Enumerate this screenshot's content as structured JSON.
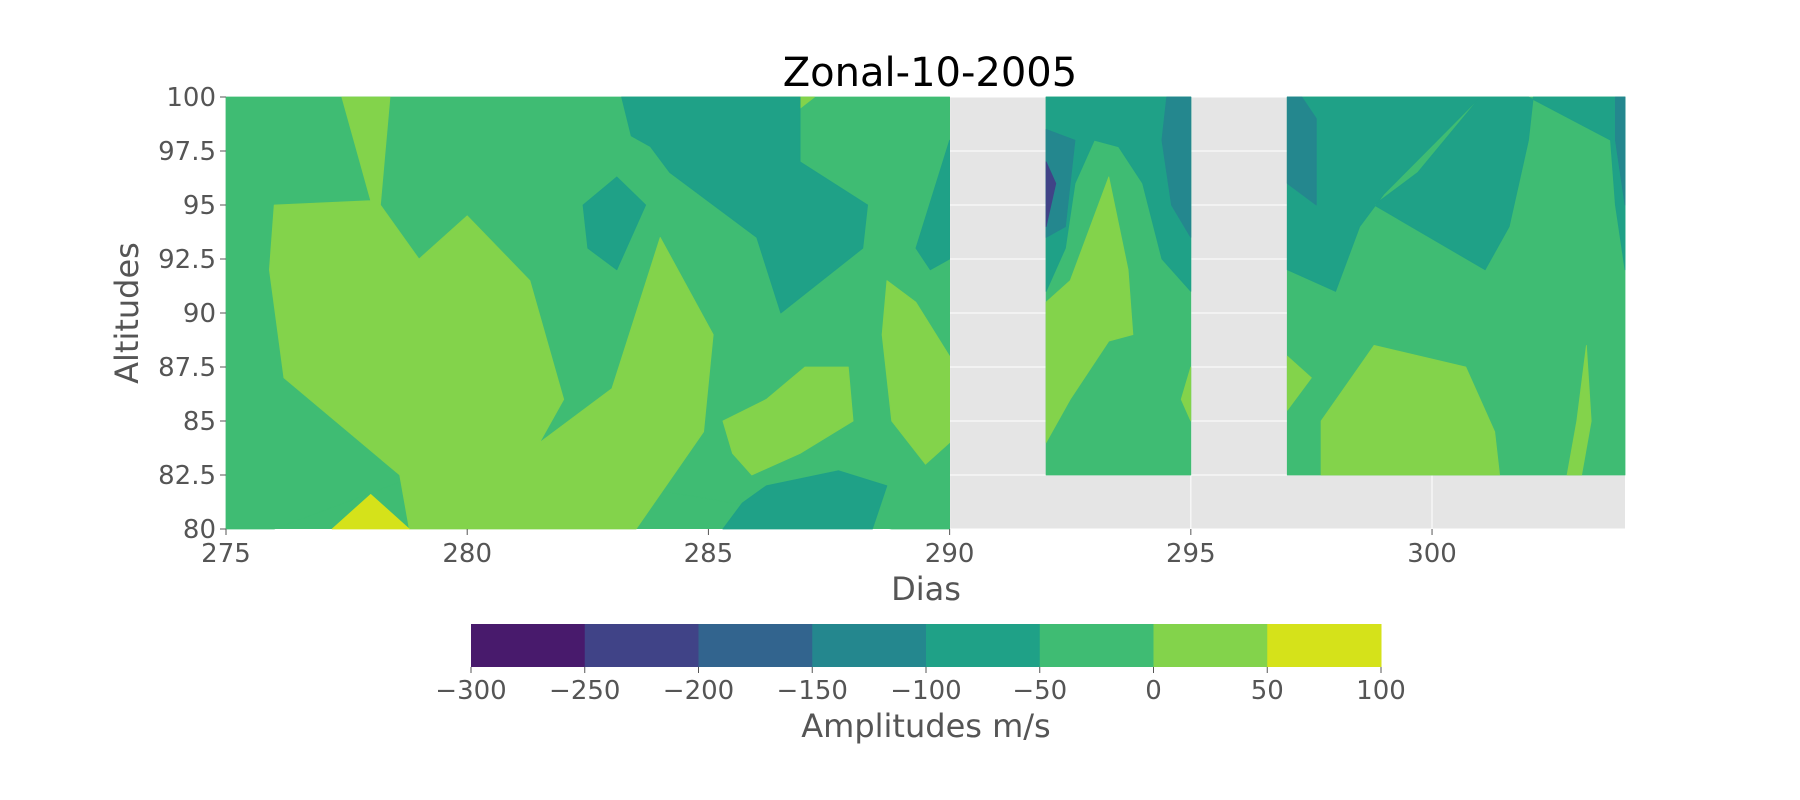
{
  "chart_data": {
    "type": "contour",
    "title": "Zonal-10-2005",
    "xlabel": "Dias",
    "ylabel": "Altitudes",
    "xlim": [
      275,
      304
    ],
    "ylim": [
      80,
      100
    ],
    "xticks": [
      "275",
      "280",
      "285",
      "290",
      "295",
      "300"
    ],
    "yticks": [
      "80",
      "82.5",
      "85",
      "87.5",
      "90",
      "92.5",
      "95",
      "97.5",
      "100"
    ],
    "grid": true,
    "background_color": "#e5e5e5",
    "colorbar": {
      "label": "Amplitudes m/s",
      "levels": [
        -300,
        -250,
        -200,
        -150,
        -100,
        -50,
        0,
        50,
        100
      ],
      "tick_labels": [
        "−300",
        "−250",
        "−200",
        "−150",
        "−100",
        "−50",
        "0",
        "50",
        "100"
      ],
      "colors": [
        "#481a6c",
        "#404387",
        "#32648e",
        "#24878e",
        "#1fa187",
        "#3fbc73",
        "#83d34b",
        "#d5e21a"
      ]
    },
    "data_regions": [
      {
        "x_start": 275,
        "x_end": 290,
        "y_start": 80,
        "y_end": 100
      },
      {
        "x_start": 292,
        "x_end": 295,
        "y_start": 82.5,
        "y_end": 100
      },
      {
        "x_start": 297,
        "x_end": 304,
        "y_start": 82.5,
        "y_end": 100
      }
    ],
    "contour_bands": [
      {
        "level_range": [
          -50,
          0
        ],
        "points": [
          [
            275,
            100
          ],
          [
            290,
            100
          ],
          [
            290,
            80
          ],
          [
            288.8,
            80
          ],
          [
            282,
            82.5
          ],
          [
            279,
            82.5
          ],
          [
            276,
            80
          ],
          [
            275,
            80
          ]
        ]
      },
      {
        "level_range": [
          0,
          50
        ],
        "points": [
          [
            276,
            95
          ],
          [
            278,
            95.2
          ],
          [
            277.4,
            100
          ],
          [
            278.4,
            100
          ],
          [
            278.2,
            95
          ],
          [
            279,
            92.5
          ],
          [
            280,
            94.5
          ],
          [
            281.3,
            91.5
          ],
          [
            282,
            86
          ],
          [
            281.5,
            84
          ],
          [
            283,
            86.5
          ],
          [
            284,
            93.5
          ],
          [
            285.1,
            89
          ],
          [
            284.9,
            84.5
          ],
          [
            283.5,
            80
          ],
          [
            278.8,
            80
          ],
          [
            278.6,
            82.5
          ],
          [
            277.8,
            84
          ],
          [
            276.2,
            87
          ],
          [
            275.9,
            92
          ]
        ]
      },
      {
        "level_range": [
          0,
          50
        ],
        "points": [
          [
            285.3,
            85
          ],
          [
            286.2,
            86
          ],
          [
            287,
            87.5
          ],
          [
            287.9,
            87.5
          ],
          [
            288,
            85
          ],
          [
            286.9,
            83.5
          ],
          [
            285.9,
            82.5
          ],
          [
            285.5,
            83.5
          ]
        ]
      },
      {
        "level_range": [
          0,
          50
        ],
        "points": [
          [
            288.7,
            91.5
          ],
          [
            289.3,
            90.5
          ],
          [
            290,
            88
          ],
          [
            290,
            84
          ],
          [
            289.5,
            83
          ],
          [
            288.8,
            85
          ],
          [
            288.6,
            89
          ]
        ]
      },
      {
        "level_range": [
          0,
          50
        ],
        "points": [
          [
            285.9,
            100
          ],
          [
            287.2,
            100
          ],
          [
            286.8,
            99.3
          ],
          [
            286.1,
            99.2
          ]
        ]
      },
      {
        "level_range": [
          50,
          100
        ],
        "points": [
          [
            277.2,
            80
          ],
          [
            278,
            81.6
          ],
          [
            278.8,
            80
          ]
        ]
      },
      {
        "level_range": [
          -100,
          -50
        ],
        "points": [
          [
            283.2,
            100
          ],
          [
            286.9,
            100
          ],
          [
            286.9,
            97
          ],
          [
            288.3,
            95
          ],
          [
            288.2,
            93
          ],
          [
            286.5,
            90
          ],
          [
            286,
            93.5
          ],
          [
            284.2,
            96.5
          ],
          [
            283.8,
            97.7
          ],
          [
            283.4,
            98.2
          ]
        ]
      },
      {
        "level_range": [
          -100,
          -50
        ],
        "points": [
          [
            282.4,
            95
          ],
          [
            283.1,
            96.3
          ],
          [
            283.7,
            95
          ],
          [
            283.1,
            92
          ],
          [
            282.5,
            93
          ]
        ]
      },
      {
        "level_range": [
          -100,
          -50
        ],
        "points": [
          [
            285.3,
            80
          ],
          [
            288.4,
            80
          ],
          [
            288.7,
            82
          ],
          [
            287.7,
            82.7
          ],
          [
            286.2,
            82
          ],
          [
            285.7,
            81.2
          ]
        ]
      },
      {
        "level_range": [
          -100,
          -50
        ],
        "points": [
          [
            289.3,
            93
          ],
          [
            290,
            98
          ],
          [
            290,
            92.5
          ],
          [
            289.6,
            92
          ]
        ]
      },
      {
        "level_range": [
          -50,
          0
        ],
        "points": [
          [
            292,
            100
          ],
          [
            295,
            100
          ],
          [
            295,
            82.5
          ],
          [
            292,
            82.5
          ]
        ]
      },
      {
        "level_range": [
          0,
          50
        ],
        "points": [
          [
            292,
            90.5
          ],
          [
            292.5,
            91.5
          ],
          [
            293.3,
            96.3
          ],
          [
            293.7,
            92
          ],
          [
            293.8,
            89
          ],
          [
            293.3,
            88.7
          ],
          [
            292.5,
            86
          ],
          [
            292,
            84
          ]
        ]
      },
      {
        "level_range": [
          0,
          50
        ],
        "points": [
          [
            294.8,
            86
          ],
          [
            295,
            87.5
          ],
          [
            295,
            85
          ],
          [
            294.9,
            85.5
          ]
        ]
      },
      {
        "level_range": [
          -100,
          -50
        ],
        "points": [
          [
            292,
            100
          ],
          [
            295,
            100
          ],
          [
            295,
            91
          ],
          [
            294.4,
            92.5
          ],
          [
            294,
            96
          ],
          [
            293.5,
            97.7
          ],
          [
            293,
            98
          ],
          [
            292.6,
            96
          ],
          [
            292.4,
            93
          ],
          [
            292,
            91
          ]
        ]
      },
      {
        "level_range": [
          -150,
          -100
        ],
        "points": [
          [
            292,
            98.5
          ],
          [
            292.6,
            98
          ],
          [
            292.4,
            94
          ],
          [
            292,
            93.5
          ]
        ]
      },
      {
        "level_range": [
          -150,
          -100
        ],
        "points": [
          [
            294.4,
            98
          ],
          [
            294.5,
            100
          ],
          [
            295,
            100
          ],
          [
            295,
            93.5
          ],
          [
            294.6,
            95
          ]
        ]
      },
      {
        "level_range": [
          -250,
          -200
        ],
        "points": [
          [
            292,
            97
          ],
          [
            292.2,
            96
          ],
          [
            292,
            94
          ]
        ]
      },
      {
        "level_range": [
          -50,
          0
        ],
        "points": [
          [
            297,
            100
          ],
          [
            304,
            100
          ],
          [
            304,
            82.5
          ],
          [
            297,
            82.5
          ]
        ]
      },
      {
        "level_range": [
          0,
          50
        ],
        "points": [
          [
            297.7,
            85
          ],
          [
            298.8,
            88.5
          ],
          [
            300.7,
            87.5
          ],
          [
            301.3,
            84.5
          ],
          [
            301.4,
            82.5
          ],
          [
            297.7,
            82.5
          ]
        ]
      },
      {
        "level_range": [
          0,
          50
        ],
        "points": [
          [
            297,
            88
          ],
          [
            297.5,
            87
          ],
          [
            297,
            85.5
          ]
        ]
      },
      {
        "level_range": [
          0,
          50
        ],
        "points": [
          [
            303,
            85
          ],
          [
            303.2,
            88.5
          ],
          [
            303.3,
            85
          ],
          [
            303.1,
            82.5
          ],
          [
            302.8,
            82.5
          ]
        ]
      },
      {
        "level_range": [
          -100,
          -50
        ],
        "points": [
          [
            297,
            100
          ],
          [
            301,
            100
          ],
          [
            299.7,
            96.5
          ],
          [
            298.8,
            95
          ],
          [
            301.1,
            92
          ],
          [
            301.6,
            94
          ],
          [
            302,
            98
          ],
          [
            302.1,
            100
          ],
          [
            304,
            100
          ],
          [
            304,
            92
          ],
          [
            303.8,
            95
          ],
          [
            303.7,
            98
          ],
          [
            302,
            100
          ],
          [
            301,
            100
          ],
          [
            299,
            95.5
          ],
          [
            298.5,
            94
          ],
          [
            298,
            91
          ],
          [
            297,
            92
          ]
        ]
      },
      {
        "level_range": [
          -150,
          -100
        ],
        "points": [
          [
            297,
            100
          ],
          [
            297.3,
            100
          ],
          [
            297.6,
            99
          ],
          [
            297.6,
            95
          ],
          [
            297,
            96
          ]
        ]
      },
      {
        "level_range": [
          -150,
          -100
        ],
        "points": [
          [
            303.8,
            100
          ],
          [
            304,
            100
          ],
          [
            304,
            95
          ],
          [
            303.8,
            98
          ]
        ]
      }
    ]
  }
}
